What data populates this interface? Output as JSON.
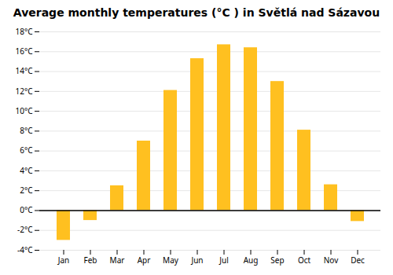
{
  "chart_data": {
    "type": "bar",
    "title": "Average monthly temperatures (°C ) in Světlá nad Sázavou",
    "categories": [
      "Jan",
      "Feb",
      "Mar",
      "Apr",
      "May",
      "Jun",
      "Jul",
      "Aug",
      "Sep",
      "Oct",
      "Nov",
      "Dec"
    ],
    "values": [
      -3.0,
      -1.0,
      2.5,
      7.0,
      12.1,
      15.3,
      16.7,
      16.4,
      13.0,
      8.1,
      2.6,
      -1.1
    ],
    "color": "#FFC020",
    "ylim": [
      -4,
      18
    ],
    "yticks": [
      {
        "value": -4,
        "label": "-4°C"
      },
      {
        "value": -2,
        "label": "-2°C"
      },
      {
        "value": 0,
        "label": "0°C"
      },
      {
        "value": 2,
        "label": "2°C"
      },
      {
        "value": 4,
        "label": "4°C"
      },
      {
        "value": 6,
        "label": "6°C"
      },
      {
        "value": 8,
        "label": "8°C"
      },
      {
        "value": 10,
        "label": "10°C"
      },
      {
        "value": 12,
        "label": "12°C"
      },
      {
        "value": 14,
        "label": "14°C"
      },
      {
        "value": 16,
        "label": "16°C"
      },
      {
        "value": 18,
        "label": "18°C"
      }
    ],
    "grid": true
  }
}
